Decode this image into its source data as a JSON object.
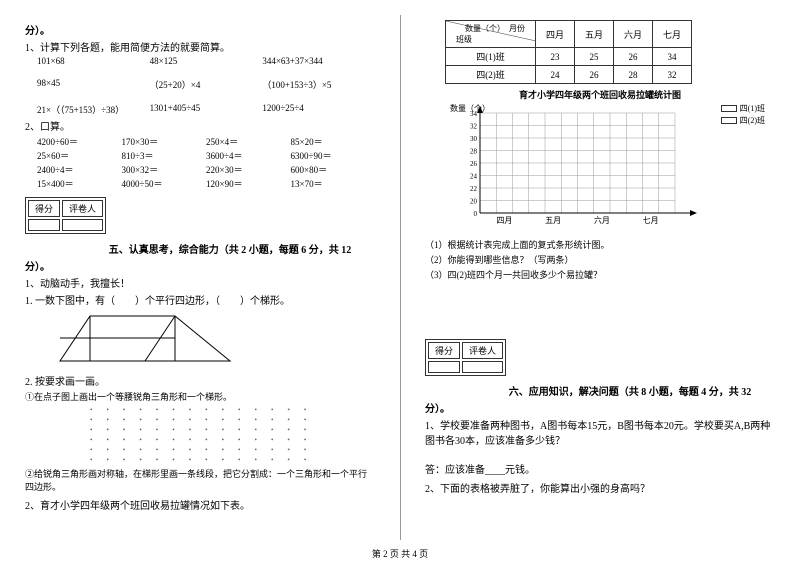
{
  "left": {
    "fen": "分）。",
    "q1_title": "1、计算下列各题，能用简便方法的就要简算。",
    "q1_r1": [
      "101×68",
      "48×125",
      "344×63+37×344"
    ],
    "q1_r2": [
      "98×45",
      "（25+20）×4",
      "（100+153÷3）×5"
    ],
    "q1_r3": [
      "21×（（75+153）÷38）",
      "1301+405÷45",
      "1200÷25÷4"
    ],
    "q2_title": "2、口算。",
    "q2_rows": [
      [
        "4200÷60＝",
        "170×30＝",
        "250×4＝",
        "85×20＝"
      ],
      [
        "25×60＝",
        "810÷3＝",
        "3600÷4＝",
        "6300÷90＝"
      ],
      [
        "2400÷4＝",
        "300×32＝",
        "220×30＝",
        "600×80＝"
      ],
      [
        "15×400＝",
        "4000÷50＝",
        "120×90＝",
        "13×70＝"
      ]
    ],
    "score_cells": [
      "得分",
      "评卷人"
    ],
    "sec5_title": "五、认真思考，综合能力（共 2 小题，每题 6 分，共 12",
    "fen2": "分）。",
    "q3_title": "1、动脑动手，我擅长！",
    "q3_1": "1. 一数下图中，有（　　）个平行四边形，（　　）个梯形。",
    "q3_2": "2. 按要求画一画。",
    "q3_2a": "①在点子图上画出一个等腰锐角三角形和一个梯形。",
    "q3_2b": "②给锐角三角形画对称轴，在梯形里画一条线段，把它分割成：一个三角形和一个平行四边形。",
    "q4_title": "2、育才小学四年级两个班回收易拉罐情况如下表。"
  },
  "right": {
    "tbl_head": [
      "数量（个）　月份",
      "四月",
      "五月",
      "六月",
      "七月"
    ],
    "tbl_head_sub": "班级",
    "tbl_r1": [
      "四(1)班",
      "23",
      "25",
      "26",
      "34"
    ],
    "tbl_r2": [
      "四(2)班",
      "24",
      "26",
      "28",
      "32"
    ],
    "chart_title": "育才小学四年级两个班回收易拉罐统计图",
    "y_label": "数量（个）",
    "y_ticks": [
      "34",
      "32",
      "30",
      "28",
      "26",
      "24",
      "22",
      "20",
      "0"
    ],
    "x_ticks": [
      "四月",
      "五月",
      "六月",
      "七月"
    ],
    "legend": [
      "四(1)班",
      "四(2)班"
    ],
    "legend_colors": [
      "#ffffff",
      "#ffffff"
    ],
    "sub_q1": "（1）根据统计表完成上面的复式条形统计图。",
    "sub_q2": "（2）你能得到哪些信息？（写两条）",
    "sub_q3": "（3）四(2)班四个月一共回收多少个易拉罐？",
    "score_cells": [
      "得分",
      "评卷人"
    ],
    "sec6_title": "六、应用知识，解决问题（共 8 小题，每题 4 分，共 32",
    "fen": "分）。",
    "q1": "1、学校要准备两种图书，A图书每本15元，B图书每本20元。学校要买A,B两种图书各30本，应该准备多少钱？",
    "ans": "答：应该准备____元钱。",
    "q2": "2、下面的表格被弄脏了，你能算出小强的身高吗？"
  },
  "footer": "第 2 页 共 4 页"
}
